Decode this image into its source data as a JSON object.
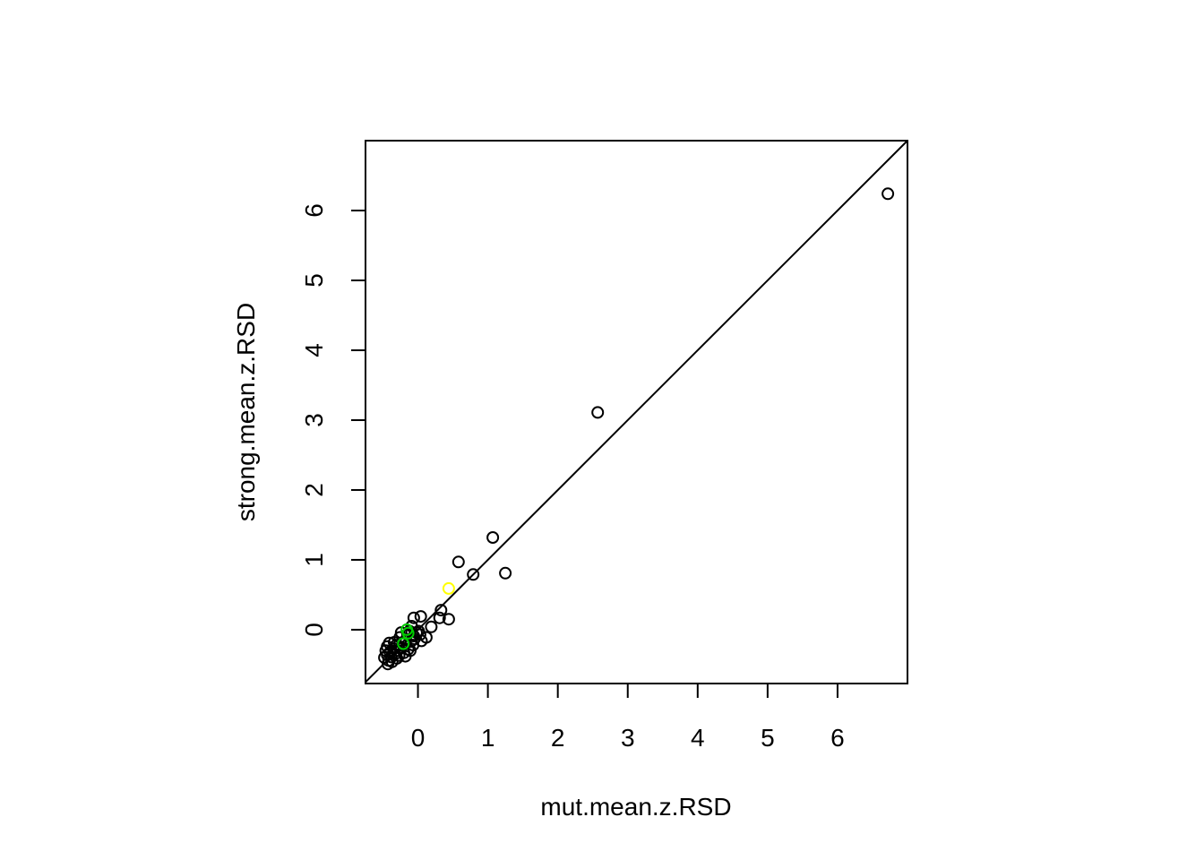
{
  "chart_data": {
    "type": "scatter",
    "xlabel": "mut.mean.z.RSD",
    "ylabel": "strong.mean.z.RSD",
    "xlim": [
      -0.75,
      7.0
    ],
    "ylim": [
      -0.77,
      7.0
    ],
    "x_ticks": [
      0,
      1,
      2,
      3,
      4,
      5,
      6
    ],
    "y_ticks": [
      0,
      1,
      2,
      3,
      4,
      5,
      6
    ],
    "reference_line": {
      "intercept": 0,
      "slope": 1,
      "color": "#000000"
    },
    "series": [
      {
        "color": "#000000",
        "points": [
          [
            6.72,
            6.24
          ],
          [
            2.57,
            3.11
          ],
          [
            1.07,
            1.32
          ],
          [
            0.58,
            0.97
          ],
          [
            0.79,
            0.79
          ],
          [
            1.25,
            0.81
          ],
          [
            0.33,
            0.28
          ],
          [
            0.44,
            0.15
          ],
          [
            0.31,
            0.17
          ],
          [
            0.04,
            0.19
          ],
          [
            -0.06,
            0.17
          ],
          [
            0.19,
            0.04
          ],
          [
            0.12,
            -0.11
          ],
          [
            0.03,
            -0.07
          ],
          [
            -0.02,
            -0.04
          ],
          [
            -0.05,
            -0.13
          ],
          [
            -0.07,
            -0.22
          ],
          [
            -0.12,
            -0.02
          ],
          [
            -0.15,
            -0.06
          ],
          [
            -0.17,
            -0.14
          ],
          [
            -0.21,
            -0.2
          ],
          [
            -0.24,
            -0.26
          ],
          [
            -0.26,
            -0.11
          ],
          [
            -0.29,
            -0.3
          ],
          [
            -0.31,
            -0.22
          ],
          [
            -0.33,
            -0.35
          ],
          [
            -0.35,
            -0.27
          ],
          [
            -0.38,
            -0.39
          ],
          [
            -0.4,
            -0.32
          ],
          [
            -0.42,
            -0.44
          ],
          [
            -0.44,
            -0.24
          ],
          [
            -0.44,
            -0.36
          ],
          [
            -0.46,
            -0.3
          ],
          [
            -0.48,
            -0.4
          ],
          [
            -0.43,
            -0.49
          ],
          [
            -0.37,
            -0.46
          ],
          [
            -0.27,
            -0.37
          ],
          [
            -0.2,
            -0.33
          ],
          [
            -0.14,
            -0.28
          ],
          [
            -0.1,
            -0.17
          ],
          [
            -0.06,
            -0.09
          ],
          [
            0.01,
            -0.02
          ],
          [
            -0.34,
            -0.18
          ],
          [
            -0.24,
            -0.04
          ],
          [
            -0.09,
            0.05
          ],
          [
            -0.41,
            -0.19
          ],
          [
            -0.3,
            -0.41
          ],
          [
            -0.18,
            -0.38
          ],
          [
            -0.11,
            -0.3
          ],
          [
            0.05,
            -0.16
          ]
        ]
      },
      {
        "color": "#00cc00",
        "points": [
          [
            -0.16,
            0.0
          ],
          [
            -0.21,
            -0.2
          ],
          [
            -0.14,
            -0.05
          ]
        ]
      },
      {
        "color": "#ffff00",
        "points": [
          [
            0.44,
            0.59
          ]
        ]
      }
    ]
  }
}
